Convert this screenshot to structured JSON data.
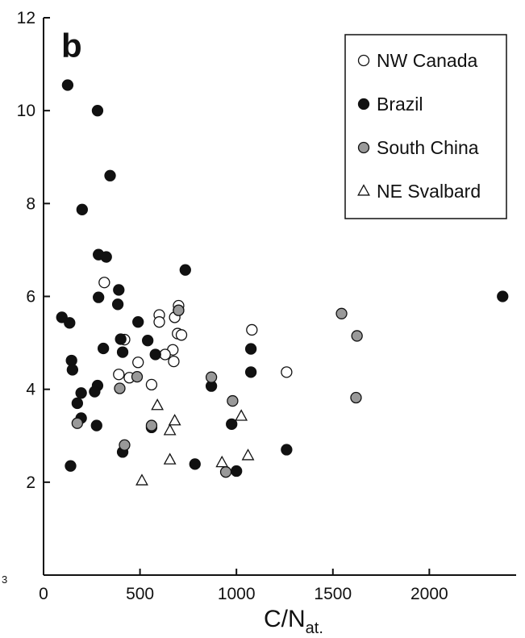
{
  "chart_data": {
    "type": "scatter",
    "panel_label": "b",
    "xlabel": "C/N",
    "xlabel_subscript": "at.",
    "ylabel": "",
    "left_edge_fragment": "3",
    "xlim": [
      0,
      2450
    ],
    "ylim": [
      0,
      12
    ],
    "xticks": [
      "0",
      "500",
      "1000",
      "1500",
      "2000"
    ],
    "yticks": [
      "2",
      "4",
      "6",
      "8",
      "10",
      "12"
    ],
    "legend_position": "top-right",
    "series": [
      {
        "name": "NW Canada",
        "marker": "open-circle",
        "color": "#ffffff",
        "points": [
          [
            315,
            6.3
          ],
          [
            600,
            5.6
          ],
          [
            600,
            5.45
          ],
          [
            700,
            5.8
          ],
          [
            700,
            5.7
          ],
          [
            680,
            5.55
          ],
          [
            695,
            5.2
          ],
          [
            715,
            5.17
          ],
          [
            670,
            4.85
          ],
          [
            630,
            4.75
          ],
          [
            675,
            4.6
          ],
          [
            490,
            4.58
          ],
          [
            420,
            5.07
          ],
          [
            390,
            4.32
          ],
          [
            445,
            4.25
          ],
          [
            560,
            4.1
          ],
          [
            1080,
            5.28
          ],
          [
            1260,
            4.37
          ]
        ]
      },
      {
        "name": "Brazil",
        "marker": "filled-circle",
        "color": "#111111",
        "points": [
          [
            125,
            10.55
          ],
          [
            280,
            10.0
          ],
          [
            345,
            8.6
          ],
          [
            200,
            7.87
          ],
          [
            285,
            6.9
          ],
          [
            325,
            6.85
          ],
          [
            735,
            6.57
          ],
          [
            390,
            6.14
          ],
          [
            285,
            5.98
          ],
          [
            385,
            5.83
          ],
          [
            95,
            5.55
          ],
          [
            135,
            5.43
          ],
          [
            490,
            5.45
          ],
          [
            400,
            5.08
          ],
          [
            540,
            5.05
          ],
          [
            310,
            4.88
          ],
          [
            410,
            4.8
          ],
          [
            580,
            4.75
          ],
          [
            145,
            4.62
          ],
          [
            150,
            4.42
          ],
          [
            280,
            4.08
          ],
          [
            265,
            3.95
          ],
          [
            195,
            3.92
          ],
          [
            175,
            3.7
          ],
          [
            195,
            3.38
          ],
          [
            275,
            3.22
          ],
          [
            560,
            3.18
          ],
          [
            870,
            4.07
          ],
          [
            1075,
            4.87
          ],
          [
            1075,
            4.37
          ],
          [
            975,
            3.25
          ],
          [
            410,
            2.65
          ],
          [
            140,
            2.35
          ],
          [
            785,
            2.39
          ],
          [
            1000,
            2.24
          ],
          [
            1260,
            2.7
          ],
          [
            2380,
            6.0
          ]
        ]
      },
      {
        "name": "South China",
        "marker": "gray-circle",
        "color": "#999999",
        "points": [
          [
            700,
            5.7
          ],
          [
            485,
            4.27
          ],
          [
            395,
            4.02
          ],
          [
            175,
            3.27
          ],
          [
            560,
            3.22
          ],
          [
            420,
            2.8
          ],
          [
            870,
            4.26
          ],
          [
            980,
            3.75
          ],
          [
            945,
            2.22
          ],
          [
            1545,
            5.63
          ],
          [
            1625,
            5.15
          ],
          [
            1620,
            3.82
          ]
        ]
      },
      {
        "name": "NE Svalbard",
        "marker": "open-triangle",
        "color": "#ffffff",
        "points": [
          [
            590,
            3.65
          ],
          [
            680,
            3.32
          ],
          [
            655,
            3.11
          ],
          [
            510,
            2.03
          ],
          [
            655,
            2.48
          ],
          [
            925,
            2.42
          ],
          [
            1025,
            3.42
          ],
          [
            1060,
            2.57
          ]
        ]
      }
    ]
  }
}
